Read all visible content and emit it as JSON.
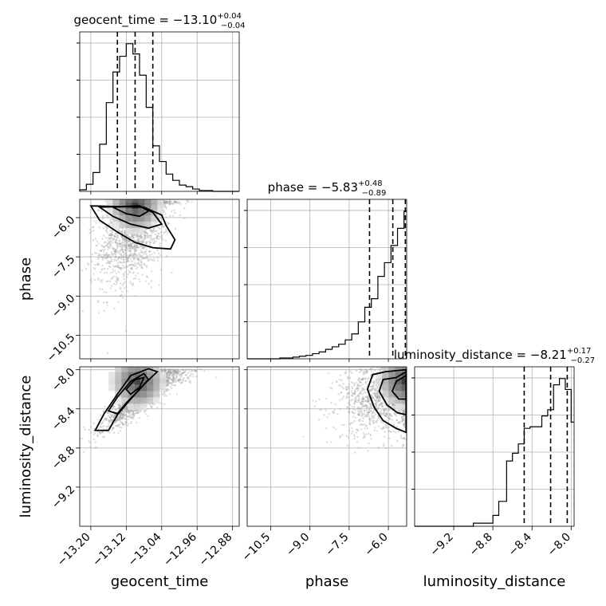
{
  "chart_data": {
    "type": "corner",
    "parameters": [
      {
        "name": "geocent_time",
        "label": "geocent_time",
        "title": "geocent_time = −13.10",
        "title_plus": "+0.04",
        "title_minus": "−0.04",
        "range": [
          -13.225,
          -12.865
        ],
        "ticks": [
          -13.2,
          -13.12,
          -13.04,
          -12.96,
          -12.88
        ],
        "tick_labels": [
          "−13.20",
          "−13.12",
          "−13.04",
          "−12.96",
          "−12.88"
        ],
        "quantiles": [
          -13.14,
          -13.1,
          -13.06
        ],
        "hist_edges": [
          -13.225,
          -13.21,
          -13.195,
          -13.18,
          -13.165,
          -13.15,
          -13.135,
          -13.12,
          -13.105,
          -13.09,
          -13.075,
          -13.06,
          -13.045,
          -13.03,
          -13.015,
          -13.0,
          -12.985,
          -12.97,
          -12.955,
          -12.94,
          -12.925,
          -12.91,
          -12.895,
          -12.88,
          -12.865
        ],
        "hist_values": [
          2,
          9,
          24,
          60,
          113,
          152,
          172,
          188,
          175,
          148,
          107,
          58,
          38,
          22,
          14,
          8,
          6,
          3,
          1,
          1,
          0,
          0,
          0,
          0
        ]
      },
      {
        "name": "phase",
        "label": "phase",
        "title": "phase = −5.83",
        "title_plus": "+0.48",
        "title_minus": "−0.89",
        "range": [
          -11.4,
          -5.3
        ],
        "ticks": [
          -10.5,
          -9.0,
          -7.5,
          -6.0
        ],
        "tick_labels": [
          "−10.5",
          "−9.0",
          "−7.5",
          "−6.0"
        ],
        "quantiles": [
          -6.72,
          -5.83,
          -5.35
        ],
        "hist_edges": [
          -11.4,
          -11.15,
          -10.9,
          -10.65,
          -10.4,
          -10.15,
          -9.9,
          -9.65,
          -9.4,
          -9.15,
          -8.9,
          -8.65,
          -8.4,
          -8.15,
          -7.9,
          -7.65,
          -7.4,
          -7.15,
          -6.9,
          -6.65,
          -6.4,
          -6.15,
          -5.9,
          -5.65,
          -5.4,
          -5.3
        ],
        "hist_values": [
          0,
          0,
          0,
          0,
          0,
          1,
          1,
          2,
          3,
          4,
          6,
          8,
          11,
          14,
          17,
          22,
          29,
          43,
          60,
          70,
          96,
          112,
          132,
          152,
          172
        ]
      },
      {
        "name": "luminosity_distance",
        "label": "luminosity_distance",
        "title": "luminosity_distance = −8.21",
        "title_plus": "+0.17",
        "title_minus": "−0.27",
        "range": [
          -9.6,
          -7.97
        ],
        "ticks": [
          -9.2,
          -8.8,
          -8.4,
          -8.0
        ],
        "tick_labels": [
          "−9.2",
          "−8.8",
          "−8.4",
          "−8.0"
        ],
        "quantiles": [
          -8.48,
          -8.21,
          -8.04
        ],
        "hist_edges": [
          -9.6,
          -9.0,
          -8.8,
          -8.74,
          -8.66,
          -8.6,
          -8.54,
          -8.48,
          -8.42,
          -8.36,
          -8.3,
          -8.24,
          -8.18,
          -8.12,
          -8.06,
          -8.0,
          -7.97
        ],
        "hist_values": [
          0,
          2,
          7,
          16,
          42,
          47,
          53,
          63,
          64,
          64,
          71,
          75,
          91,
          95,
          88,
          67
        ]
      }
    ],
    "density": {
      "geocent_time_vs_phase": {
        "levels": [
          [
            [
              -13.2,
              -5.55
            ],
            [
              -13.18,
              -6.1
            ],
            [
              -13.14,
              -6.55
            ],
            [
              -13.1,
              -6.95
            ],
            [
              -13.06,
              -7.15
            ],
            [
              -13.02,
              -7.2
            ],
            [
              -13.01,
              -6.85
            ],
            [
              -13.03,
              -6.3
            ],
            [
              -13.04,
              -5.9
            ],
            [
              -13.08,
              -5.6
            ]
          ],
          [
            [
              -13.18,
              -5.6
            ],
            [
              -13.15,
              -5.95
            ],
            [
              -13.11,
              -6.25
            ],
            [
              -13.07,
              -6.4
            ],
            [
              -13.04,
              -6.25
            ],
            [
              -13.06,
              -5.8
            ],
            [
              -13.09,
              -5.55
            ]
          ],
          [
            [
              -13.15,
              -5.6
            ],
            [
              -13.12,
              -5.85
            ],
            [
              -13.09,
              -5.95
            ],
            [
              -13.07,
              -5.75
            ],
            [
              -13.09,
              -5.55
            ]
          ]
        ]
      },
      "geocent_time_vs_luminosity_distance": {
        "levels": [
          [
            [
              -13.19,
              -8.62
            ],
            [
              -13.17,
              -8.45
            ],
            [
              -13.14,
              -8.25
            ],
            [
              -13.11,
              -8.06
            ],
            [
              -13.07,
              -7.99
            ],
            [
              -13.05,
              -8.02
            ],
            [
              -13.08,
              -8.15
            ],
            [
              -13.11,
              -8.3
            ],
            [
              -13.14,
              -8.46
            ],
            [
              -13.16,
              -8.62
            ]
          ],
          [
            [
              -13.16,
              -8.42
            ],
            [
              -13.14,
              -8.28
            ],
            [
              -13.11,
              -8.12
            ],
            [
              -13.08,
              -8.04
            ],
            [
              -13.07,
              -8.1
            ],
            [
              -13.09,
              -8.2
            ],
            [
              -13.12,
              -8.34
            ],
            [
              -13.14,
              -8.45
            ]
          ],
          [
            [
              -13.12,
              -8.2
            ],
            [
              -13.1,
              -8.1
            ],
            [
              -13.08,
              -8.08
            ],
            [
              -13.09,
              -8.18
            ],
            [
              -13.11,
              -8.25
            ]
          ]
        ]
      },
      "phase_vs_luminosity_distance": {
        "levels": [
          [
            [
              -5.32,
              -8.0
            ],
            [
              -6.1,
              -8.02
            ],
            [
              -6.6,
              -8.05
            ],
            [
              -6.8,
              -8.2
            ],
            [
              -6.55,
              -8.38
            ],
            [
              -6.2,
              -8.52
            ],
            [
              -5.7,
              -8.6
            ],
            [
              -5.32,
              -8.64
            ]
          ],
          [
            [
              -5.32,
              -8.02
            ],
            [
              -5.7,
              -8.08
            ],
            [
              -6.2,
              -8.1
            ],
            [
              -6.35,
              -8.22
            ],
            [
              -6.05,
              -8.36
            ],
            [
              -5.65,
              -8.44
            ],
            [
              -5.32,
              -8.46
            ]
          ],
          [
            [
              -5.32,
              -8.06
            ],
            [
              -5.7,
              -8.12
            ],
            [
              -5.85,
              -8.22
            ],
            [
              -5.6,
              -8.3
            ],
            [
              -5.32,
              -8.3
            ]
          ]
        ]
      }
    },
    "grid": true,
    "legend": "none"
  }
}
